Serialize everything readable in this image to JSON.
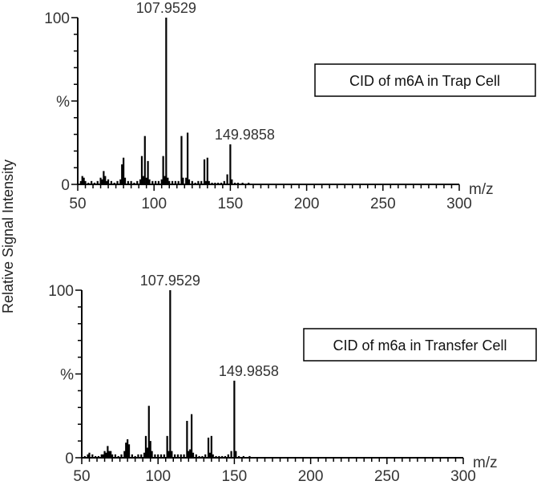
{
  "ylabel_shared": "Relative Signal Intensity",
  "chart_data": [
    {
      "type": "bar",
      "annotation": "CID of m6A in Trap Cell",
      "xlabel": "m/z",
      "ylabel": "%",
      "xlim": [
        50,
        300
      ],
      "ylim": [
        0,
        100
      ],
      "x_ticks": [
        50,
        100,
        150,
        200,
        250,
        300
      ],
      "y_ticks": [
        {
          "value": 0,
          "label": "0"
        },
        {
          "value": 50,
          "label": "%"
        },
        {
          "value": 100,
          "label": "100"
        }
      ],
      "peak_labels": [
        {
          "mz": 107.9529,
          "label": "107.9529"
        },
        {
          "mz": 149.9858,
          "label": "149.9858"
        }
      ],
      "peaks": [
        {
          "mz": 52,
          "intensity": 2
        },
        {
          "mz": 53,
          "intensity": 5
        },
        {
          "mz": 54,
          "intensity": 4
        },
        {
          "mz": 55,
          "intensity": 2
        },
        {
          "mz": 57,
          "intensity": 1
        },
        {
          "mz": 59,
          "intensity": 2
        },
        {
          "mz": 61,
          "intensity": 1
        },
        {
          "mz": 63,
          "intensity": 2
        },
        {
          "mz": 65,
          "intensity": 4
        },
        {
          "mz": 66,
          "intensity": 3
        },
        {
          "mz": 67,
          "intensity": 8
        },
        {
          "mz": 68,
          "intensity": 5
        },
        {
          "mz": 69,
          "intensity": 2
        },
        {
          "mz": 70,
          "intensity": 3
        },
        {
          "mz": 72,
          "intensity": 2
        },
        {
          "mz": 74,
          "intensity": 1
        },
        {
          "mz": 76,
          "intensity": 2
        },
        {
          "mz": 78,
          "intensity": 3
        },
        {
          "mz": 79,
          "intensity": 12
        },
        {
          "mz": 80,
          "intensity": 16
        },
        {
          "mz": 81,
          "intensity": 4
        },
        {
          "mz": 83,
          "intensity": 2
        },
        {
          "mz": 85,
          "intensity": 2
        },
        {
          "mz": 87,
          "intensity": 1
        },
        {
          "mz": 89,
          "intensity": 2
        },
        {
          "mz": 91,
          "intensity": 3
        },
        {
          "mz": 92,
          "intensity": 17
        },
        {
          "mz": 93,
          "intensity": 5
        },
        {
          "mz": 94,
          "intensity": 29
        },
        {
          "mz": 95,
          "intensity": 4
        },
        {
          "mz": 96,
          "intensity": 14
        },
        {
          "mz": 97,
          "intensity": 3
        },
        {
          "mz": 99,
          "intensity": 2
        },
        {
          "mz": 101,
          "intensity": 2
        },
        {
          "mz": 103,
          "intensity": 2
        },
        {
          "mz": 105,
          "intensity": 3
        },
        {
          "mz": 106,
          "intensity": 17
        },
        {
          "mz": 107,
          "intensity": 5
        },
        {
          "mz": 107.9529,
          "intensity": 100
        },
        {
          "mz": 109,
          "intensity": 4
        },
        {
          "mz": 110,
          "intensity": 2
        },
        {
          "mz": 112,
          "intensity": 2
        },
        {
          "mz": 114,
          "intensity": 2
        },
        {
          "mz": 116,
          "intensity": 2
        },
        {
          "mz": 118,
          "intensity": 29
        },
        {
          "mz": 119,
          "intensity": 4
        },
        {
          "mz": 121,
          "intensity": 4
        },
        {
          "mz": 122,
          "intensity": 31
        },
        {
          "mz": 123,
          "intensity": 3
        },
        {
          "mz": 125,
          "intensity": 2
        },
        {
          "mz": 127,
          "intensity": 1
        },
        {
          "mz": 129,
          "intensity": 2
        },
        {
          "mz": 131,
          "intensity": 2
        },
        {
          "mz": 133,
          "intensity": 15
        },
        {
          "mz": 134,
          "intensity": 2
        },
        {
          "mz": 135,
          "intensity": 16
        },
        {
          "mz": 136,
          "intensity": 2
        },
        {
          "mz": 138,
          "intensity": 1
        },
        {
          "mz": 140,
          "intensity": 1
        },
        {
          "mz": 142,
          "intensity": 1
        },
        {
          "mz": 144,
          "intensity": 1
        },
        {
          "mz": 146,
          "intensity": 2
        },
        {
          "mz": 148,
          "intensity": 6
        },
        {
          "mz": 149.9858,
          "intensity": 24
        },
        {
          "mz": 151,
          "intensity": 3
        },
        {
          "mz": 153,
          "intensity": 1
        },
        {
          "mz": 155,
          "intensity": 1
        },
        {
          "mz": 158,
          "intensity": 1
        },
        {
          "mz": 162,
          "intensity": 1
        }
      ]
    },
    {
      "type": "bar",
      "annotation": "CID of m6a in Transfer Cell",
      "xlabel": "m/z",
      "ylabel": "%",
      "xlim": [
        50,
        300
      ],
      "ylim": [
        0,
        100
      ],
      "x_ticks": [
        50,
        100,
        150,
        200,
        250,
        300
      ],
      "y_ticks": [
        {
          "value": 0,
          "label": "0"
        },
        {
          "value": 50,
          "label": "%"
        },
        {
          "value": 100,
          "label": "100"
        }
      ],
      "peak_labels": [
        {
          "mz": 107.9529,
          "label": "107.9529"
        },
        {
          "mz": 149.9858,
          "label": "149.9858"
        }
      ],
      "peaks": [
        {
          "mz": 52,
          "intensity": 1
        },
        {
          "mz": 54,
          "intensity": 2
        },
        {
          "mz": 55,
          "intensity": 3
        },
        {
          "mz": 57,
          "intensity": 2
        },
        {
          "mz": 59,
          "intensity": 1
        },
        {
          "mz": 61,
          "intensity": 1
        },
        {
          "mz": 63,
          "intensity": 2
        },
        {
          "mz": 64,
          "intensity": 2
        },
        {
          "mz": 65,
          "intensity": 4
        },
        {
          "mz": 66,
          "intensity": 3
        },
        {
          "mz": 67,
          "intensity": 7
        },
        {
          "mz": 68,
          "intensity": 4
        },
        {
          "mz": 69,
          "intensity": 4
        },
        {
          "mz": 70,
          "intensity": 2
        },
        {
          "mz": 72,
          "intensity": 2
        },
        {
          "mz": 74,
          "intensity": 1
        },
        {
          "mz": 76,
          "intensity": 2
        },
        {
          "mz": 78,
          "intensity": 4
        },
        {
          "mz": 79,
          "intensity": 9
        },
        {
          "mz": 80,
          "intensity": 11
        },
        {
          "mz": 81,
          "intensity": 8
        },
        {
          "mz": 83,
          "intensity": 2
        },
        {
          "mz": 85,
          "intensity": 1
        },
        {
          "mz": 87,
          "intensity": 2
        },
        {
          "mz": 89,
          "intensity": 2
        },
        {
          "mz": 91,
          "intensity": 3
        },
        {
          "mz": 92,
          "intensity": 13
        },
        {
          "mz": 93,
          "intensity": 6
        },
        {
          "mz": 94,
          "intensity": 31
        },
        {
          "mz": 95,
          "intensity": 10
        },
        {
          "mz": 96,
          "intensity": 4
        },
        {
          "mz": 98,
          "intensity": 2
        },
        {
          "mz": 100,
          "intensity": 2
        },
        {
          "mz": 102,
          "intensity": 2
        },
        {
          "mz": 104,
          "intensity": 2
        },
        {
          "mz": 106,
          "intensity": 13
        },
        {
          "mz": 107,
          "intensity": 4
        },
        {
          "mz": 107.9529,
          "intensity": 100
        },
        {
          "mz": 109,
          "intensity": 4
        },
        {
          "mz": 111,
          "intensity": 2
        },
        {
          "mz": 113,
          "intensity": 2
        },
        {
          "mz": 115,
          "intensity": 2
        },
        {
          "mz": 117,
          "intensity": 2
        },
        {
          "mz": 119,
          "intensity": 22
        },
        {
          "mz": 120,
          "intensity": 4
        },
        {
          "mz": 121,
          "intensity": 5
        },
        {
          "mz": 122,
          "intensity": 26
        },
        {
          "mz": 123,
          "intensity": 3
        },
        {
          "mz": 125,
          "intensity": 2
        },
        {
          "mz": 127,
          "intensity": 1
        },
        {
          "mz": 129,
          "intensity": 1
        },
        {
          "mz": 131,
          "intensity": 2
        },
        {
          "mz": 133,
          "intensity": 12
        },
        {
          "mz": 134,
          "intensity": 3
        },
        {
          "mz": 135,
          "intensity": 13
        },
        {
          "mz": 136,
          "intensity": 2
        },
        {
          "mz": 138,
          "intensity": 1
        },
        {
          "mz": 140,
          "intensity": 1
        },
        {
          "mz": 142,
          "intensity": 1
        },
        {
          "mz": 144,
          "intensity": 1
        },
        {
          "mz": 146,
          "intensity": 2
        },
        {
          "mz": 148,
          "intensity": 4
        },
        {
          "mz": 149.9858,
          "intensity": 46
        },
        {
          "mz": 151,
          "intensity": 4
        },
        {
          "mz": 153,
          "intensity": 1
        },
        {
          "mz": 156,
          "intensity": 1
        },
        {
          "mz": 160,
          "intensity": 1
        }
      ]
    }
  ]
}
